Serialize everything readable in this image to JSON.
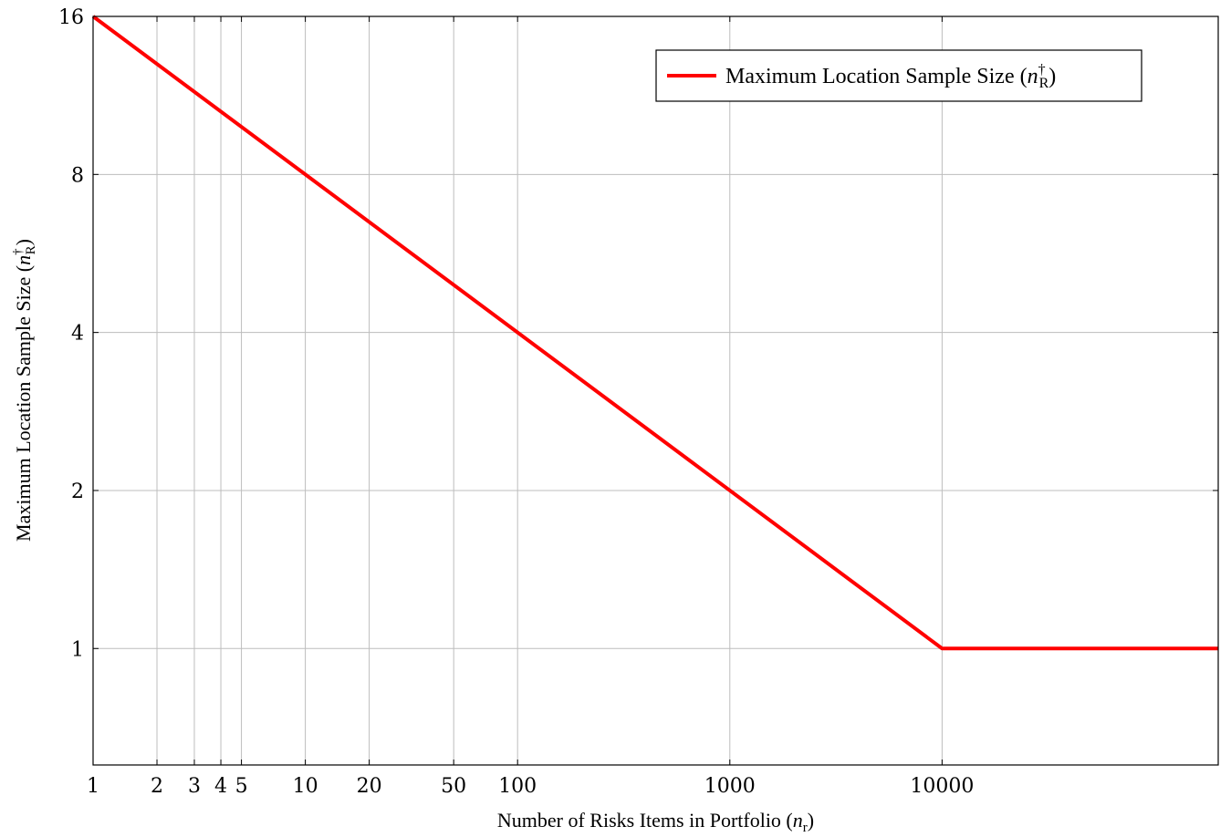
{
  "chart_data": {
    "type": "line",
    "xscale": "log",
    "yscale": "log2",
    "xlim": [
      1,
      200000
    ],
    "ylim": [
      0.6,
      16
    ],
    "grid": true,
    "legend_placement": "top-right",
    "xlabel": {
      "main": "Number of Risks Items in Portfolio (",
      "var": "n",
      "sub": "r",
      "close": ")"
    },
    "ylabel": {
      "main": "Maximum Location Sample Size (",
      "var": "n",
      "sup": "†",
      "sub": "R",
      "close": ")"
    },
    "x_ticks": [
      {
        "value": 1,
        "label": "1"
      },
      {
        "value": 2,
        "label": "2"
      },
      {
        "value": 3,
        "label": "3"
      },
      {
        "value": 4,
        "label": "4"
      },
      {
        "value": 5,
        "label": "5"
      },
      {
        "value": 10,
        "label": "10"
      },
      {
        "value": 20,
        "label": "20"
      },
      {
        "value": 50,
        "label": "50"
      },
      {
        "value": 100,
        "label": "100"
      },
      {
        "value": 1000,
        "label": "1000"
      },
      {
        "value": 10000,
        "label": "10000"
      }
    ],
    "y_ticks": [
      {
        "value": 1,
        "label": "1"
      },
      {
        "value": 2,
        "label": "2"
      },
      {
        "value": 4,
        "label": "4"
      },
      {
        "value": 8,
        "label": "8"
      },
      {
        "value": 16,
        "label": "16"
      }
    ],
    "series": [
      {
        "name": {
          "main": "Maximum Location Sample Size (",
          "var": "n",
          "sup": "†",
          "sub": "R",
          "close": ")"
        },
        "color": "#ff0000",
        "x": [
          1,
          10000,
          200000
        ],
        "y": [
          16,
          1,
          1
        ]
      }
    ]
  }
}
